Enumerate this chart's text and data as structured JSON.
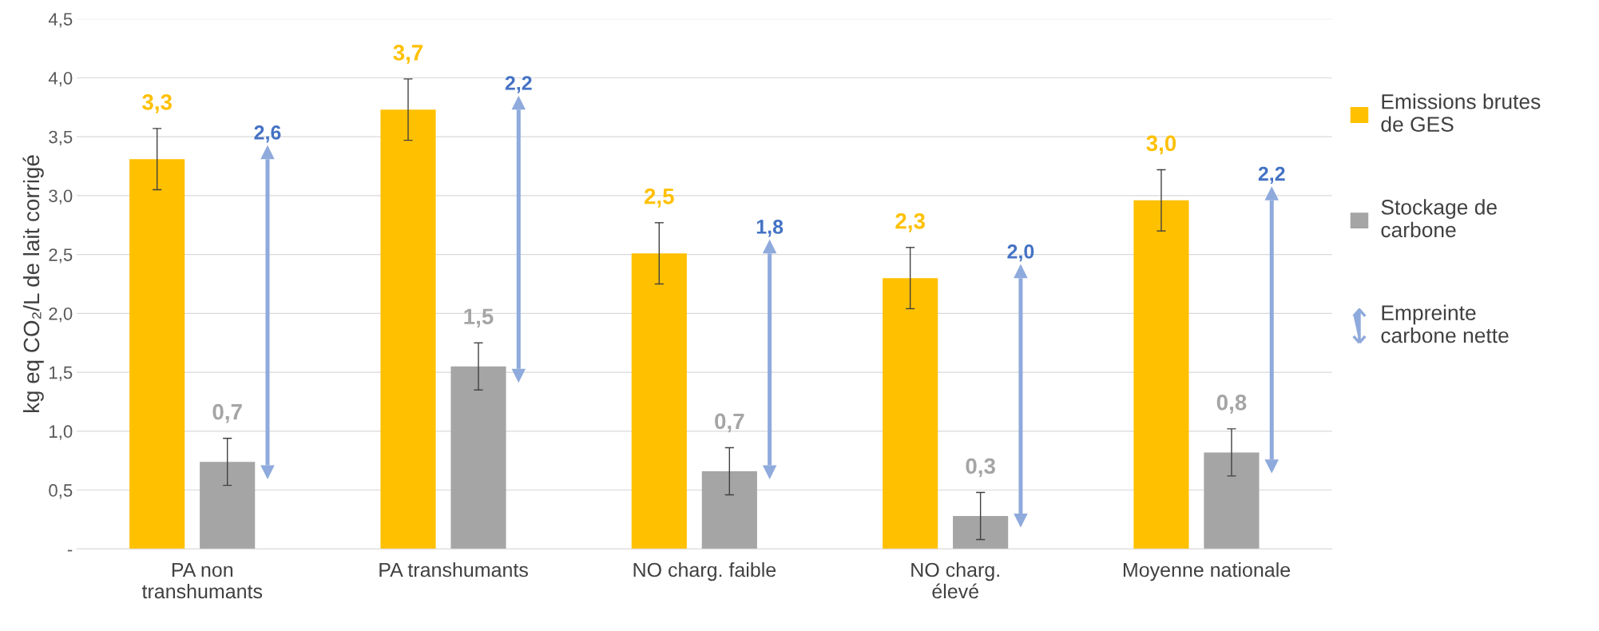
{
  "chart_data": {
    "type": "bar",
    "ylabel": "kg eq CO₂/L de lait corrigé",
    "categories": [
      "PA non\ntranshumants",
      "PA transhumants",
      "NO charg. faible",
      "NO charg.\nélevé",
      "Moyenne nationale"
    ],
    "series": [
      {
        "name": "Emissions brutes\nde GES",
        "color": "#ffc000",
        "values": [
          3.31,
          3.73,
          2.51,
          2.3,
          2.96
        ],
        "errors": [
          0.26,
          0.26,
          0.26,
          0.26,
          0.26
        ],
        "value_labels": [
          "3,3",
          "3,7",
          "2,5",
          "2,3",
          "3,0"
        ]
      },
      {
        "name": "Stockage de\ncarbone",
        "color": "#a5a5a5",
        "values": [
          0.74,
          1.55,
          0.66,
          0.28,
          0.82
        ],
        "errors": [
          0.2,
          0.2,
          0.2,
          0.2,
          0.2
        ],
        "value_labels": [
          "0,7",
          "1,5",
          "0,7",
          "0,3",
          "0,8"
        ]
      },
      {
        "name": "Empreinte\ncarbone nette",
        "type": "bar",
        "color": "#8faadc",
        "base": [
          0.71,
          1.53,
          0.71,
          0.3,
          0.76
        ],
        "values": [
          2.6,
          2.2,
          1.8,
          2.0,
          2.2
        ],
        "value_labels": [
          "2,6",
          "2,2",
          "1,8",
          "2,0",
          "2,2"
        ]
      }
    ],
    "ylim": [
      0,
      4.5
    ],
    "yticks": [
      {
        "value": 0,
        "label": "-"
      },
      {
        "value": 0.5,
        "label": "0,5"
      },
      {
        "value": 1.0,
        "label": "1,0"
      },
      {
        "value": 1.5,
        "label": "1,5"
      },
      {
        "value": 2.0,
        "label": "2,0"
      },
      {
        "value": 2.5,
        "label": "2,5"
      },
      {
        "value": 3.0,
        "label": "3,0"
      },
      {
        "value": 3.5,
        "label": "3,5"
      },
      {
        "value": 4.0,
        "label": "4,0"
      },
      {
        "value": 4.5,
        "label": "4,5"
      }
    ],
    "grid": "y",
    "legend": "right"
  }
}
